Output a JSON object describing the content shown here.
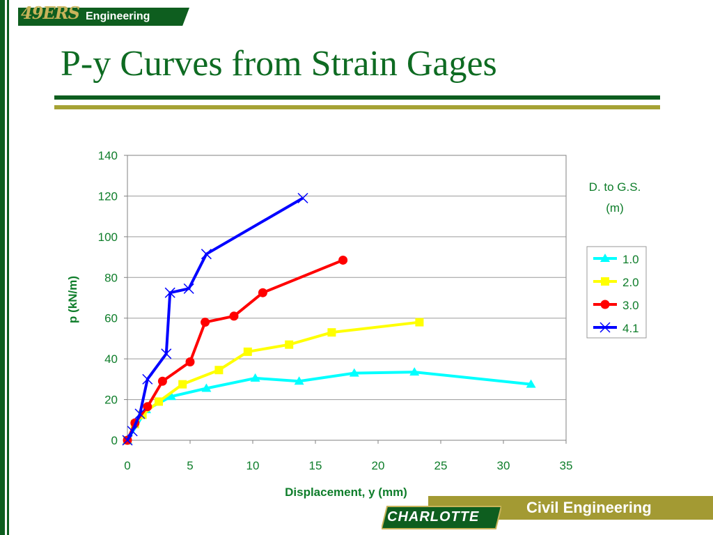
{
  "header": {
    "logo_text": "49ERS",
    "logo_subtext": "Engineering",
    "title": "P-y Curves from Strain Gages"
  },
  "footer": {
    "label": "Civil Engineering",
    "logo_text": "CHARLOTTE"
  },
  "colors": {
    "green": "#0e6b22",
    "olive": "#a5a234",
    "footer": "#a39a33"
  },
  "chart_data": {
    "type": "line",
    "xlabel": "Displacement, y (mm)",
    "ylabel": "p (kN/m)",
    "xlim": [
      0,
      35
    ],
    "ylim": [
      0,
      140
    ],
    "xticks": [
      0,
      5,
      10,
      15,
      20,
      25,
      30,
      35
    ],
    "yticks": [
      0,
      20,
      40,
      60,
      80,
      100,
      120,
      140
    ],
    "grid": "horizontal",
    "legend_title": "D. to G.S. (m)",
    "legend_title_line1": "D. to G.S.",
    "legend_title_line2": "(m)",
    "legend_position": "right",
    "series": [
      {
        "name": "1.0",
        "color": "#00ffff",
        "marker": "triangle",
        "x": [
          0,
          1.5,
          3.5,
          6.3,
          10.2,
          13.7,
          18.1,
          22.9,
          32.2
        ],
        "y": [
          0,
          15,
          21.5,
          25.5,
          30.5,
          29,
          33,
          33.5,
          27.5
        ]
      },
      {
        "name": "2.0",
        "color": "#ffff00",
        "marker": "square",
        "x": [
          0,
          0.6,
          1.2,
          2.5,
          4.4,
          7.3,
          9.6,
          12.9,
          16.3,
          23.3
        ],
        "y": [
          0,
          8,
          12.5,
          19,
          27.5,
          34.5,
          43.5,
          47,
          53,
          58
        ]
      },
      {
        "name": "3.0",
        "color": "#ff0000",
        "marker": "circle",
        "x": [
          0,
          0.6,
          1.6,
          2.8,
          5.0,
          6.2,
          8.5,
          10.8,
          17.2
        ],
        "y": [
          0,
          8.5,
          16.5,
          29,
          38.5,
          58,
          61,
          72.5,
          88.5
        ]
      },
      {
        "name": "4.1",
        "color": "#0000ff",
        "marker": "x",
        "x": [
          0,
          0.4,
          1.0,
          1.6,
          3.1,
          3.4,
          4.9,
          6.3,
          14.0
        ],
        "y": [
          0,
          4.5,
          13,
          30,
          42.5,
          72.5,
          74.5,
          91.5,
          119
        ]
      }
    ]
  }
}
